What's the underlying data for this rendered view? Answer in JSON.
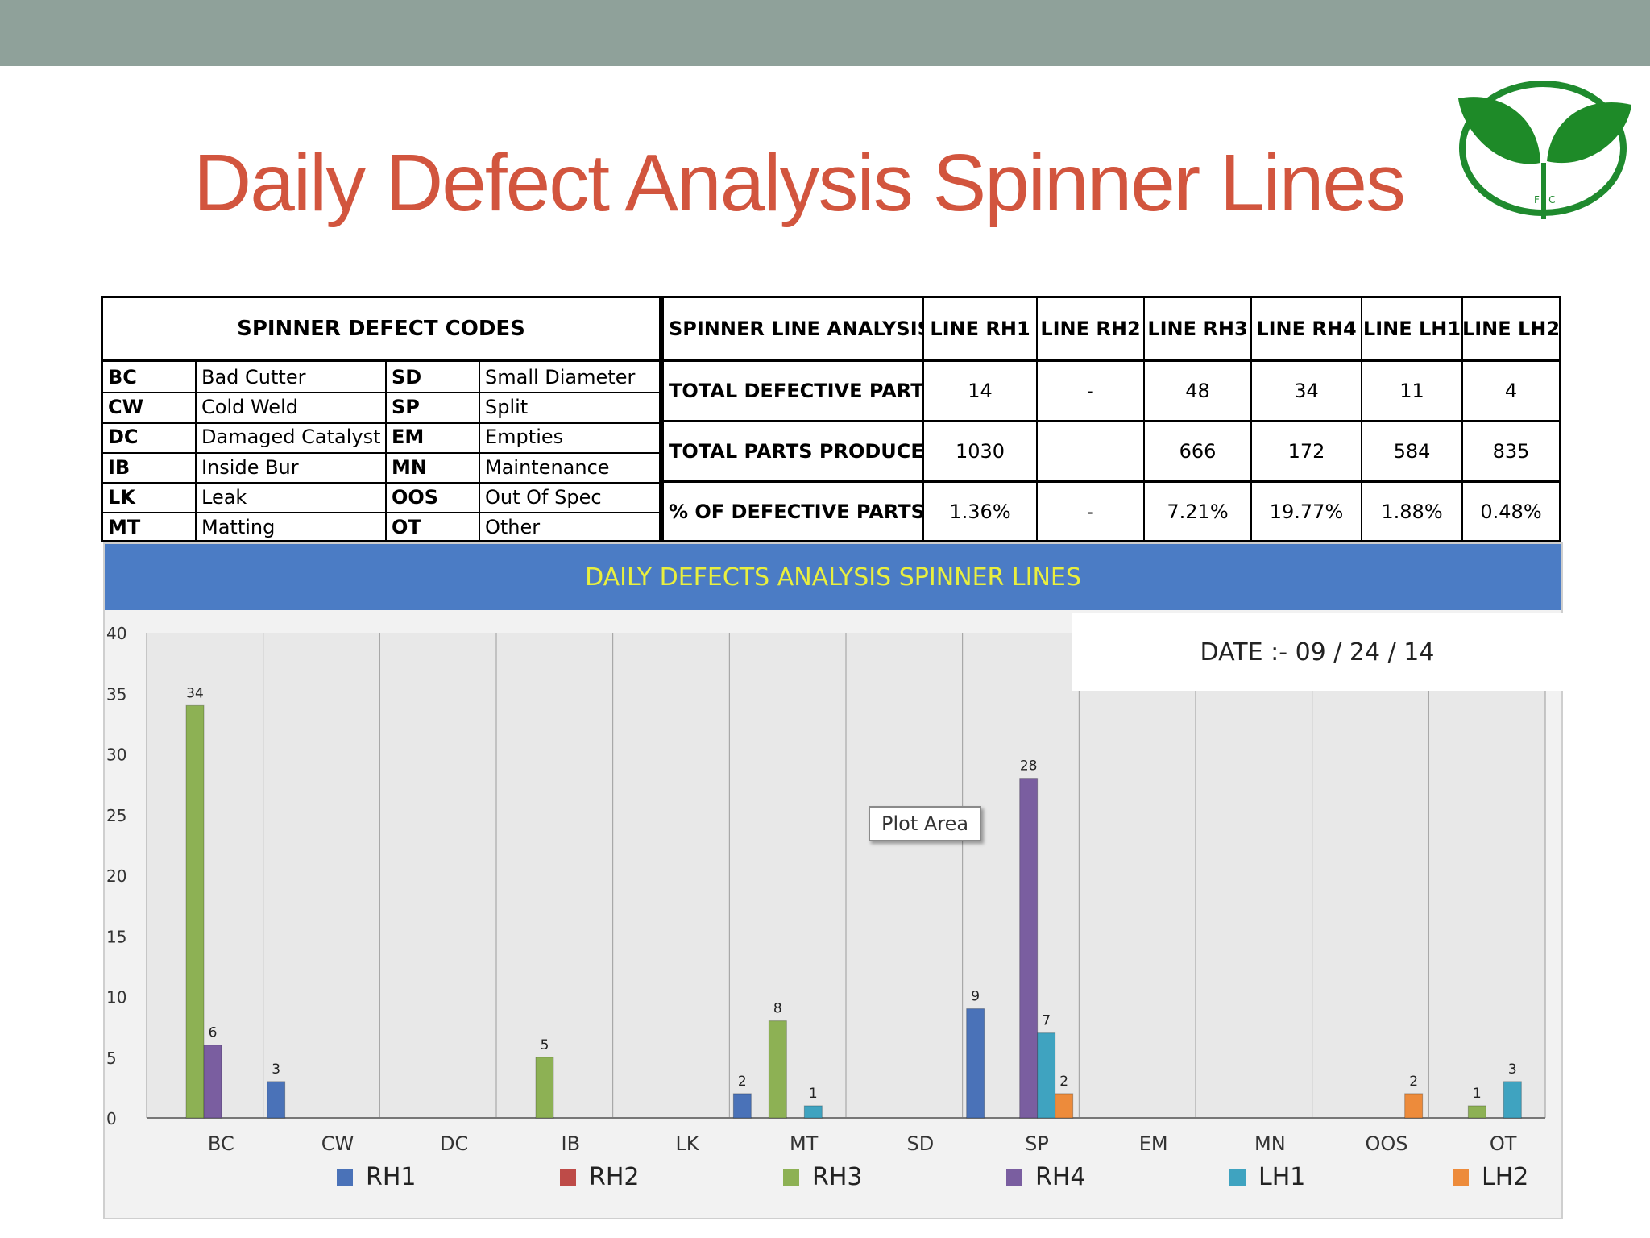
{
  "slide": {
    "title": "Daily Defect Analysis Spinner Lines",
    "logo_text": "F I C"
  },
  "codes_table": {
    "title": "SPINNER DEFECT CODES",
    "rows": [
      {
        "code1": "BC",
        "desc1": "Bad Cutter",
        "code2": "SD",
        "desc2": "Small Diameter"
      },
      {
        "code1": "CW",
        "desc1": "Cold Weld",
        "code2": "SP",
        "desc2": "Split"
      },
      {
        "code1": "DC",
        "desc1": "Damaged Catalyst",
        "code2": "EM",
        "desc2": "Empties"
      },
      {
        "code1": "IB",
        "desc1": "Inside Bur",
        "code2": "MN",
        "desc2": "Maintenance"
      },
      {
        "code1": "LK",
        "desc1": "Leak",
        "code2": "OOS",
        "desc2": "Out Of Spec"
      },
      {
        "code1": "MT",
        "desc1": "Matting",
        "code2": "OT",
        "desc2": "Other"
      }
    ]
  },
  "analysis_table": {
    "header": [
      "SPINNER LINE ANALYSIS",
      "LINE RH1",
      "LINE RH2",
      "LINE RH3",
      "LINE RH4",
      "LINE LH1",
      "LINE LH2"
    ],
    "rows": [
      {
        "label": "TOTAL DEFECTIVE PARTS",
        "values": [
          "14",
          "-",
          "48",
          "34",
          "11",
          "4"
        ]
      },
      {
        "label": "TOTAL PARTS PRODUCED",
        "values": [
          "1030",
          "",
          "666",
          "172",
          "584",
          "835"
        ]
      },
      {
        "label": "% OF DEFECTIVE PARTS",
        "values": [
          "1.36%",
          "-",
          "7.21%",
          "19.77%",
          "1.88%",
          "0.48%"
        ]
      }
    ]
  },
  "chart": {
    "date_label": "DATE :-  09 / 24 / 14",
    "tooltip": "Plot Area"
  },
  "chart_data": {
    "type": "bar",
    "title": "DAILY DEFECTS ANALYSIS SPINNER LINES",
    "categories": [
      "BC",
      "CW",
      "DC",
      "IB",
      "LK",
      "MT",
      "SD",
      "SP",
      "EM",
      "MN",
      "OOS",
      "OT"
    ],
    "ylim": [
      0,
      40
    ],
    "yticks": [
      0,
      5,
      10,
      15,
      20,
      25,
      30,
      35,
      40
    ],
    "xlabel": "",
    "ylabel": "",
    "legend_position": "bottom",
    "series": [
      {
        "name": "RH1",
        "color": "#4a72b8",
        "values": [
          0,
          3,
          0,
          0,
          0,
          2,
          0,
          9,
          0,
          0,
          0,
          0
        ]
      },
      {
        "name": "RH2",
        "color": "#be4b48",
        "values": [
          0,
          0,
          0,
          0,
          0,
          0,
          0,
          0,
          0,
          0,
          0,
          0
        ]
      },
      {
        "name": "RH3",
        "color": "#8db154",
        "values": [
          34,
          0,
          0,
          5,
          0,
          8,
          0,
          0,
          0,
          0,
          0,
          1
        ]
      },
      {
        "name": "RH4",
        "color": "#7a5ea0",
        "values": [
          6,
          0,
          0,
          0,
          0,
          0,
          0,
          28,
          0,
          0,
          0,
          0
        ]
      },
      {
        "name": "LH1",
        "color": "#3fa3c0",
        "values": [
          0,
          0,
          0,
          0,
          0,
          1,
          0,
          7,
          0,
          0,
          0,
          3
        ]
      },
      {
        "name": "LH2",
        "color": "#ed8b3b",
        "values": [
          0,
          0,
          0,
          0,
          0,
          0,
          0,
          2,
          0,
          0,
          2,
          0
        ]
      }
    ]
  }
}
